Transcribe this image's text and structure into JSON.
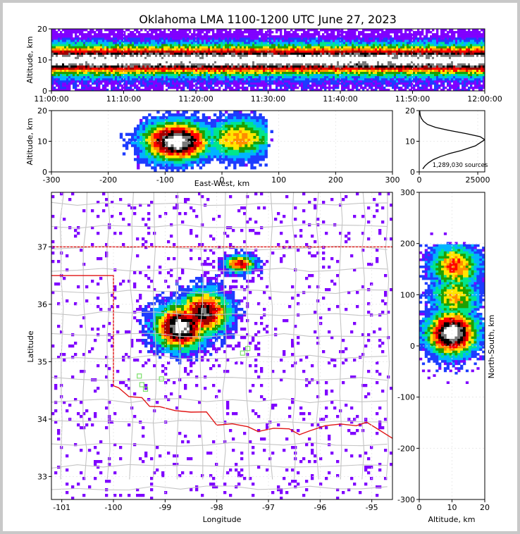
{
  "title": "Oklahoma LMA 1100-1200 UTC June 27, 2023",
  "colors": {
    "ramp": [
      "#ffffff",
      "#7f00ff",
      "#1e3cff",
      "#00b4ff",
      "#00e68c",
      "#1fa000",
      "#ffe600",
      "#ff8c00",
      "#ff0000",
      "#a00000",
      "#000000",
      "#7a7a7a",
      "#ffffff"
    ],
    "state_border": "#e01515",
    "county": "#c4c4c4",
    "stations": "#7be06a"
  },
  "chart_data": [
    {
      "panel": "time-height",
      "type": "heatmap",
      "ylabel": "Altitude, km",
      "xlim": [
        "11:00:00",
        "12:00:00"
      ],
      "ylim": [
        0,
        20
      ],
      "x_ticks": [
        "11:00:00",
        "11:10:00",
        "11:20:00",
        "11:30:00",
        "11:40:00",
        "11:50:00",
        "12:00:00"
      ],
      "y_ticks": [
        "0",
        "10",
        "20"
      ],
      "density_peak_altitude_km": 10
    },
    {
      "panel": "east-west-height",
      "type": "heatmap",
      "xlabel": "East-West, km",
      "ylabel": "Altitude, km",
      "xlim": [
        -300,
        300
      ],
      "ylim": [
        0,
        20
      ],
      "x_ticks": [
        "-300",
        "-200",
        "-100",
        "0",
        "100",
        "200",
        "300"
      ],
      "y_ticks": [
        "0",
        "10",
        "20"
      ],
      "cores": [
        {
          "x_km": -80,
          "alt_km": 10,
          "intensity": 1.0
        },
        {
          "x_km": 30,
          "alt_km": 11,
          "intensity": 0.55
        }
      ]
    },
    {
      "panel": "altitude-histogram",
      "type": "line",
      "xlim": [
        0,
        28000
      ],
      "ylim": [
        0,
        20
      ],
      "x_ticks": [
        "0",
        "25000"
      ],
      "y_ticks": [
        "0",
        "10",
        "20"
      ],
      "annotation": "1,289,030 sources",
      "x": [
        1500,
        2500,
        4000,
        6000,
        9000,
        13000,
        18000,
        24000,
        28000,
        26000,
        20000,
        13000,
        7000,
        3500,
        1800,
        900,
        400,
        200
      ],
      "y": [
        1,
        2,
        3,
        4,
        5,
        6,
        7,
        8.5,
        10.5,
        11.5,
        12.5,
        13.5,
        14.5,
        15.5,
        16.5,
        17.5,
        18.5,
        20
      ]
    },
    {
      "panel": "plan-view",
      "type": "heatmap",
      "xlabel": "Longitude",
      "ylabel": "Latitude",
      "xlim": [
        -101.2,
        -94.6
      ],
      "ylim": [
        32.6,
        37.95
      ],
      "x_ticks": [
        "-101",
        "-100",
        "-99",
        "-98",
        "-97",
        "-96",
        "-95"
      ],
      "y_ticks": [
        "33",
        "34",
        "35",
        "36",
        "37"
      ],
      "cores": [
        {
          "lon": -98.7,
          "lat": 35.6,
          "intensity": 1.0
        },
        {
          "lon": -98.25,
          "lat": 35.85,
          "intensity": 0.85
        },
        {
          "lon": -97.55,
          "lat": 36.7,
          "intensity": 0.7
        }
      ],
      "stations": [
        {
          "lon": -99.5,
          "lat": 34.75
        },
        {
          "lon": -99.45,
          "lat": 34.6
        },
        {
          "lon": -99.38,
          "lat": 34.52
        },
        {
          "lon": -99.07,
          "lat": 34.7
        },
        {
          "lon": -97.5,
          "lat": 35.15
        },
        {
          "lon": -97.4,
          "lat": 35.23
        }
      ]
    },
    {
      "panel": "north-south-height",
      "type": "heatmap",
      "xlabel": "Altitude, km",
      "ylabel": "North-South, km",
      "xlim": [
        0,
        20
      ],
      "ylim": [
        -300,
        300
      ],
      "x_ticks": [
        "0",
        "10",
        "20"
      ],
      "y_ticks": [
        "-300",
        "-200",
        "-100",
        "0",
        "100",
        "200",
        "300"
      ],
      "cores": [
        {
          "ns_km": 25,
          "alt_km": 10,
          "intensity": 1.0
        },
        {
          "ns_km": 155,
          "alt_km": 11,
          "intensity": 0.6
        },
        {
          "ns_km": 95,
          "alt_km": 11,
          "intensity": 0.5
        }
      ]
    }
  ]
}
